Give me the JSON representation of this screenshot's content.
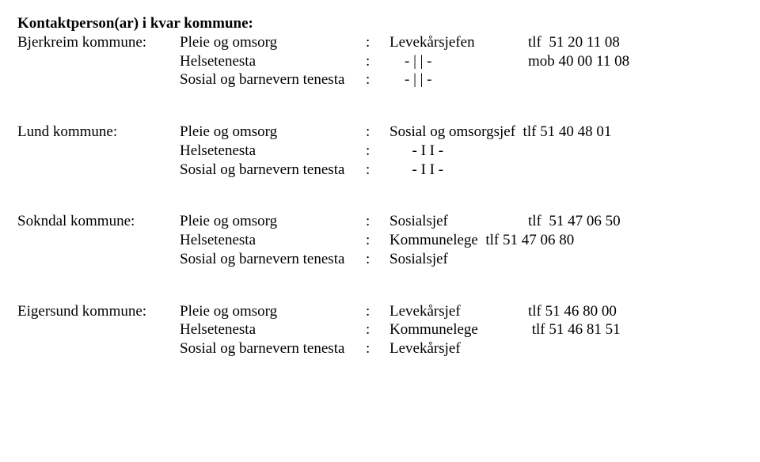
{
  "heading": "Kontaktperson(ar) i kvar kommune:",
  "blocks": [
    {
      "label": "Bjerkreim kommune:",
      "rows": [
        {
          "dept": "Pleie og omsorg",
          "role": "Levekårsjefen",
          "phone": "tlf  51 20 11 08"
        },
        {
          "dept": "Helsetenesta",
          "role": "    - | | -",
          "phone": "mob 40 00 11 08"
        },
        {
          "dept": "Sosial og barnevern tenesta",
          "role": "    - | | -",
          "phone": ""
        }
      ]
    },
    {
      "label": "Lund kommune:",
      "rows": [
        {
          "dept": "Pleie og omsorg",
          "role": "Sosial og omsorgsjef  tlf 51 40 48 01",
          "phone": ""
        },
        {
          "dept": "Helsetenesta",
          "role": "      - I I -",
          "phone": ""
        },
        {
          "dept": "Sosial og barnevern tenesta",
          "role": "      - I I -",
          "phone": ""
        }
      ]
    },
    {
      "label": "Sokndal kommune:",
      "rows": [
        {
          "dept": "Pleie og omsorg",
          "role": "Sosialsjef",
          "phone": "tlf  51 47 06 50"
        },
        {
          "dept": "Helsetenesta",
          "role": "Kommunelege  tlf 51 47 06 80",
          "phone": ""
        },
        {
          "dept": "Sosial og barnevern tenesta",
          "role": "Sosialsjef",
          "phone": ""
        }
      ]
    },
    {
      "label": "Eigersund kommune:",
      "rows": [
        {
          "dept": "Pleie og omsorg",
          "role": "Levekårsjef",
          "phone": "tlf 51 46 80 00"
        },
        {
          "dept": "Helsetenesta",
          "role": "Kommunelege",
          "phone": " tlf 51 46 81 51"
        },
        {
          "dept": "Sosial og barnevern tenesta",
          "role": "Levekårsjef",
          "phone": ""
        }
      ]
    }
  ]
}
